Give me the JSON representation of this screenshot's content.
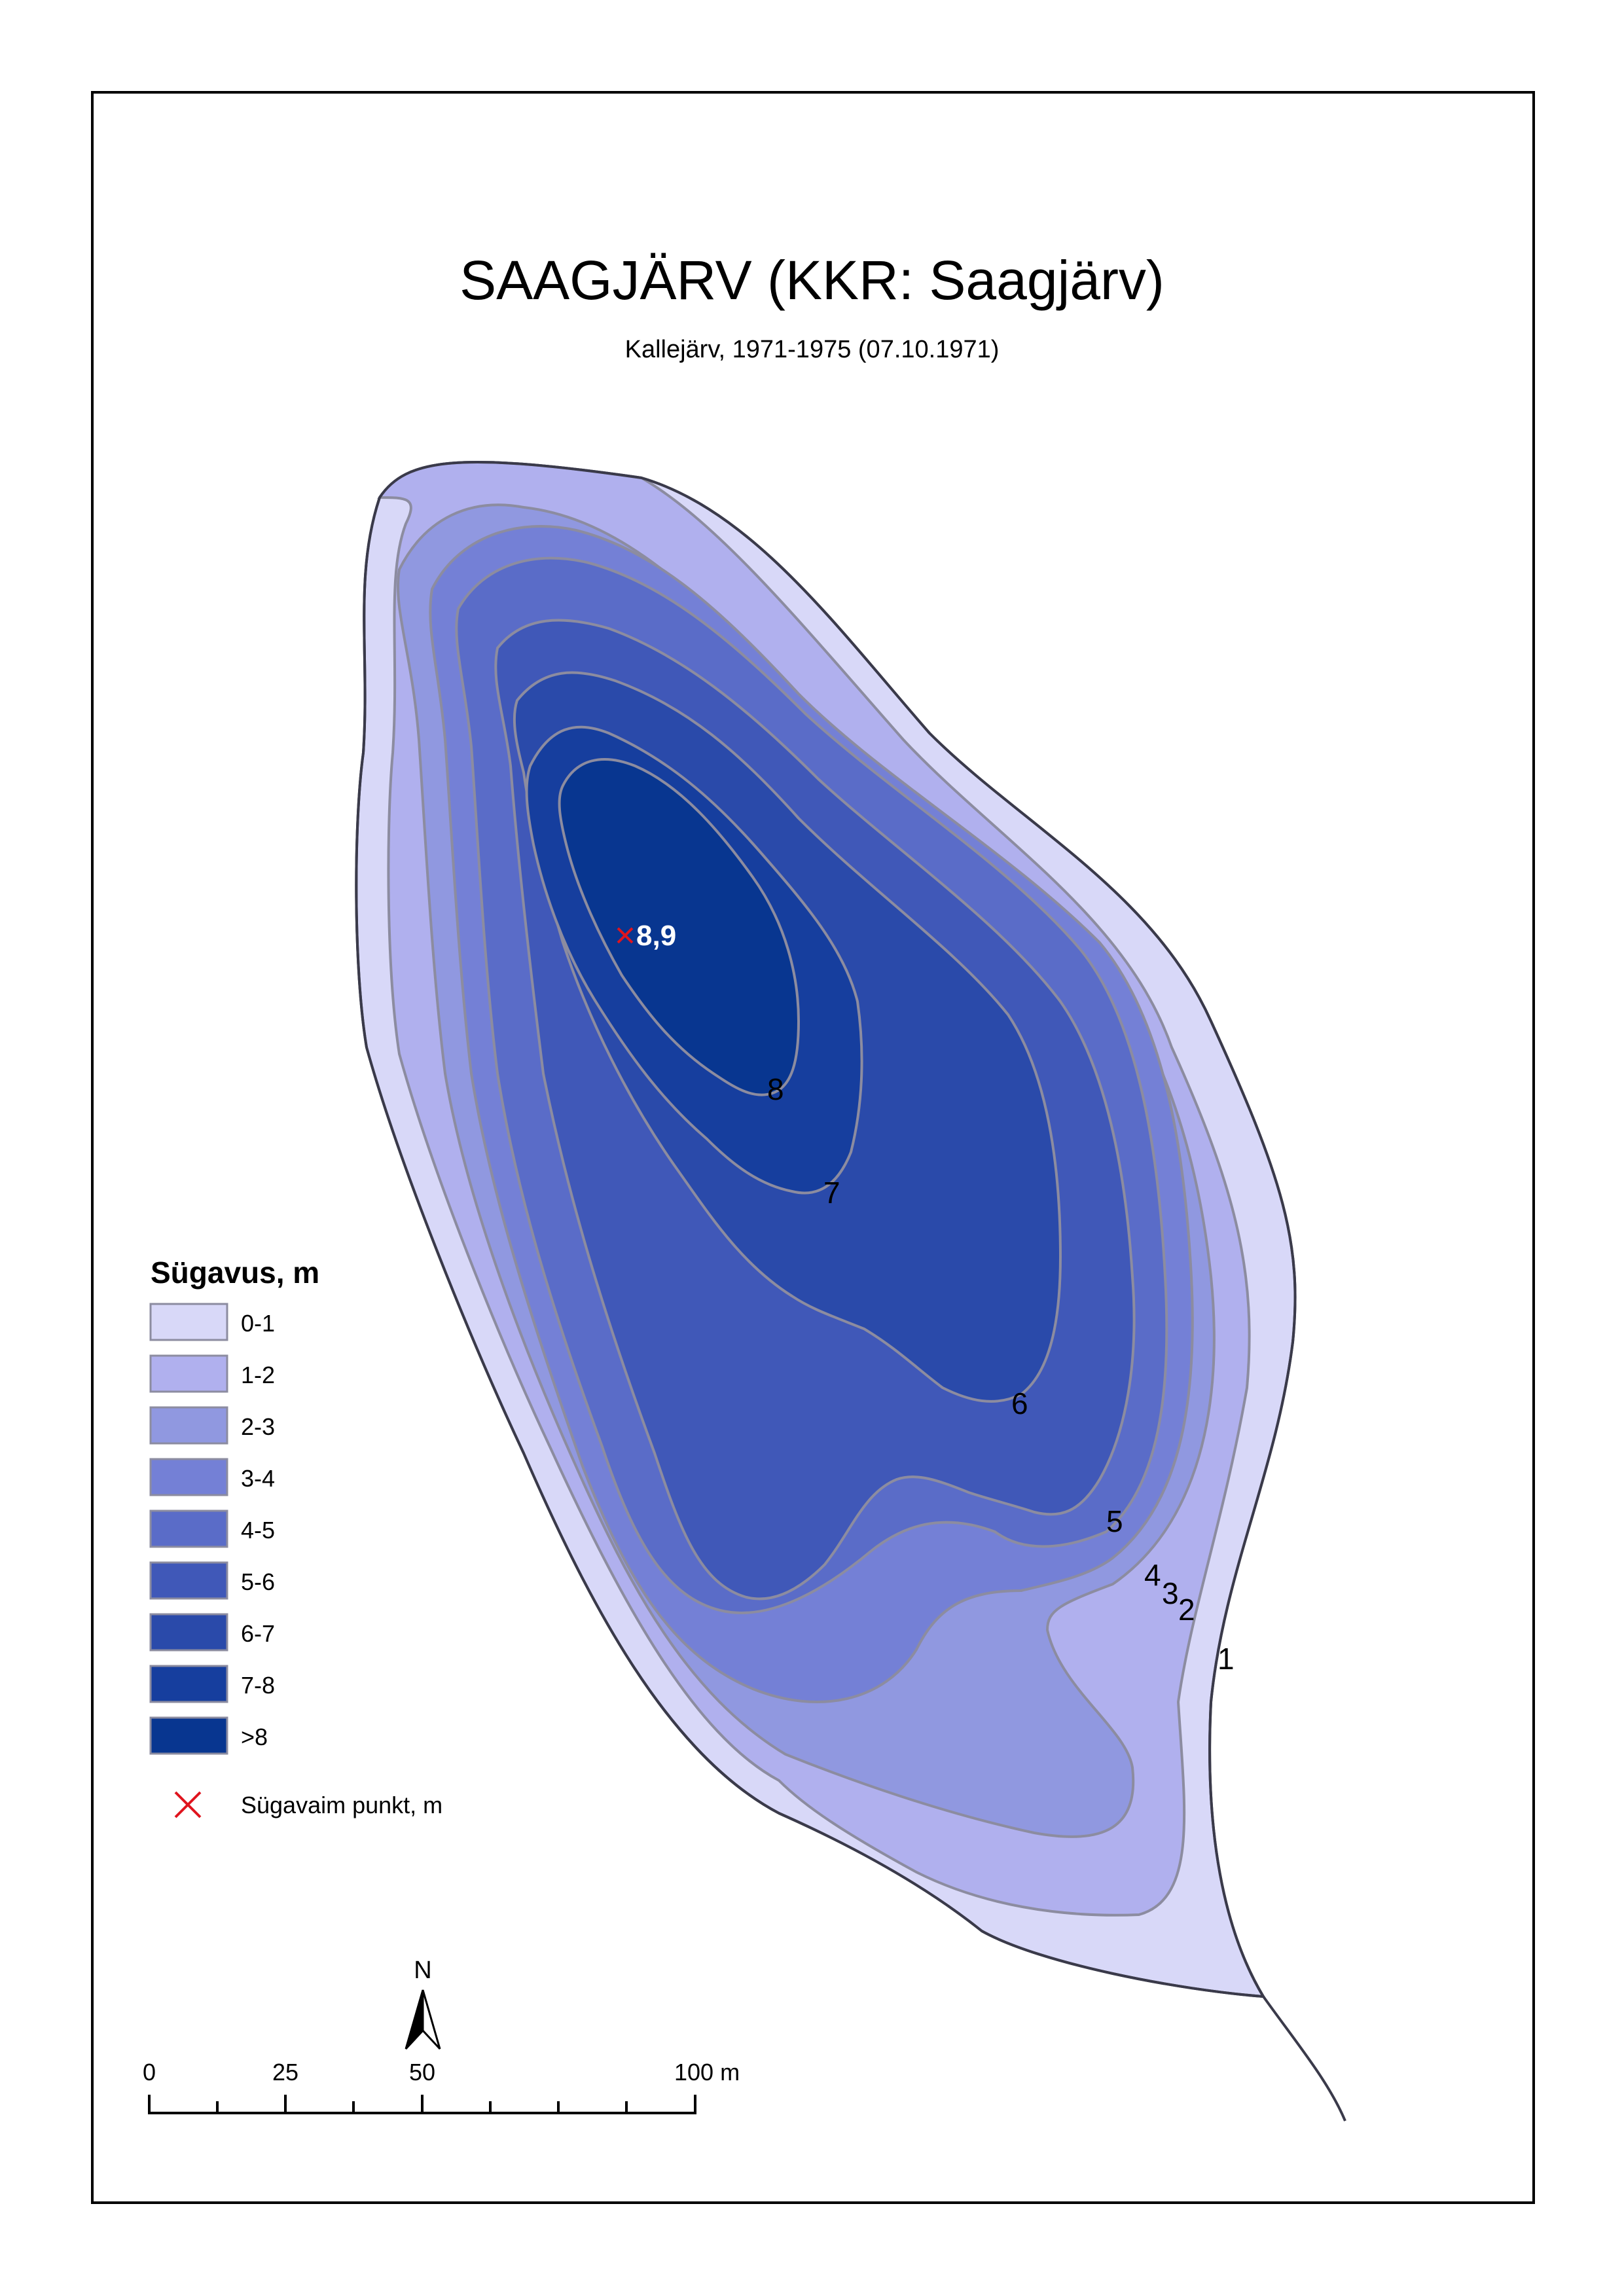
{
  "map": {
    "title": "SAAGJÄRV (KKR: Saagjärv)",
    "subtitle": "Kallejärv, 1971-1975 (07.10.1971)"
  },
  "contour_labels": [
    "1",
    "2",
    "3",
    "4",
    "5",
    "6",
    "7",
    "8"
  ],
  "deepest_point": {
    "label": "8,9",
    "marker_color": "#e0141e"
  },
  "legend": {
    "title": "Sügavus, m",
    "classes": [
      {
        "label": "0-1",
        "color": "#d8d8f8"
      },
      {
        "label": "1-2",
        "color": "#b0b0ee"
      },
      {
        "label": "2-3",
        "color": "#9098e0"
      },
      {
        "label": "3-4",
        "color": "#7480d6"
      },
      {
        "label": "4-5",
        "color": "#5a6cc8"
      },
      {
        "label": "5-6",
        "color": "#4058b8"
      },
      {
        "label": "6-7",
        "color": "#2a4aaa"
      },
      {
        "label": "7-8",
        "color": "#163e9e"
      },
      {
        "label": ">8",
        "color": "#083690"
      }
    ],
    "point_label": "Sügavaim punkt, m"
  },
  "north_arrow": {
    "label": "N"
  },
  "scale_bar": {
    "labels": [
      "0",
      "25",
      "50",
      "100 m"
    ]
  }
}
